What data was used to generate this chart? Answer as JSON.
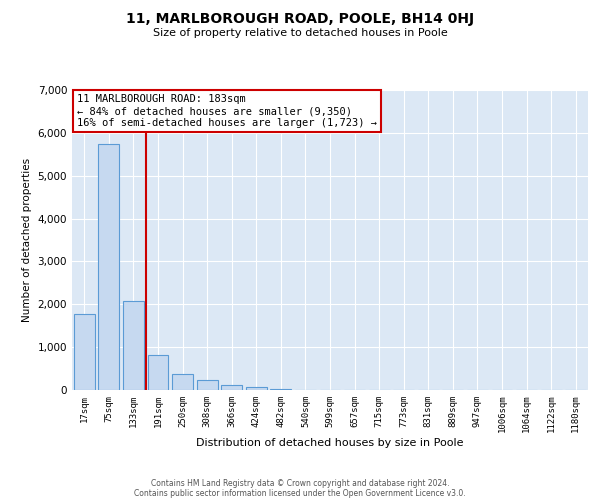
{
  "title": "11, MARLBOROUGH ROAD, POOLE, BH14 0HJ",
  "subtitle": "Size of property relative to detached houses in Poole",
  "xlabel": "Distribution of detached houses by size in Poole",
  "ylabel": "Number of detached properties",
  "bar_labels": [
    "17sqm",
    "75sqm",
    "133sqm",
    "191sqm",
    "250sqm",
    "308sqm",
    "366sqm",
    "424sqm",
    "482sqm",
    "540sqm",
    "599sqm",
    "657sqm",
    "715sqm",
    "773sqm",
    "831sqm",
    "889sqm",
    "947sqm",
    "1006sqm",
    "1064sqm",
    "1122sqm",
    "1180sqm"
  ],
  "bar_values": [
    1770,
    5750,
    2070,
    810,
    380,
    230,
    110,
    60,
    30,
    10,
    5,
    0,
    0,
    0,
    0,
    0,
    0,
    0,
    0,
    0,
    0
  ],
  "bar_color": "#c6d9f0",
  "bar_edge_color": "#5b9bd5",
  "vline_color": "#cc0000",
  "annotation_title": "11 MARLBOROUGH ROAD: 183sqm",
  "annotation_line1": "← 84% of detached houses are smaller (9,350)",
  "annotation_line2": "16% of semi-detached houses are larger (1,723) →",
  "annotation_box_color": "#ffffff",
  "annotation_box_edge": "#cc0000",
  "ylim": [
    0,
    7000
  ],
  "footer1": "Contains HM Land Registry data © Crown copyright and database right 2024.",
  "footer2": "Contains public sector information licensed under the Open Government Licence v3.0.",
  "plot_bg_color": "#dce8f5"
}
